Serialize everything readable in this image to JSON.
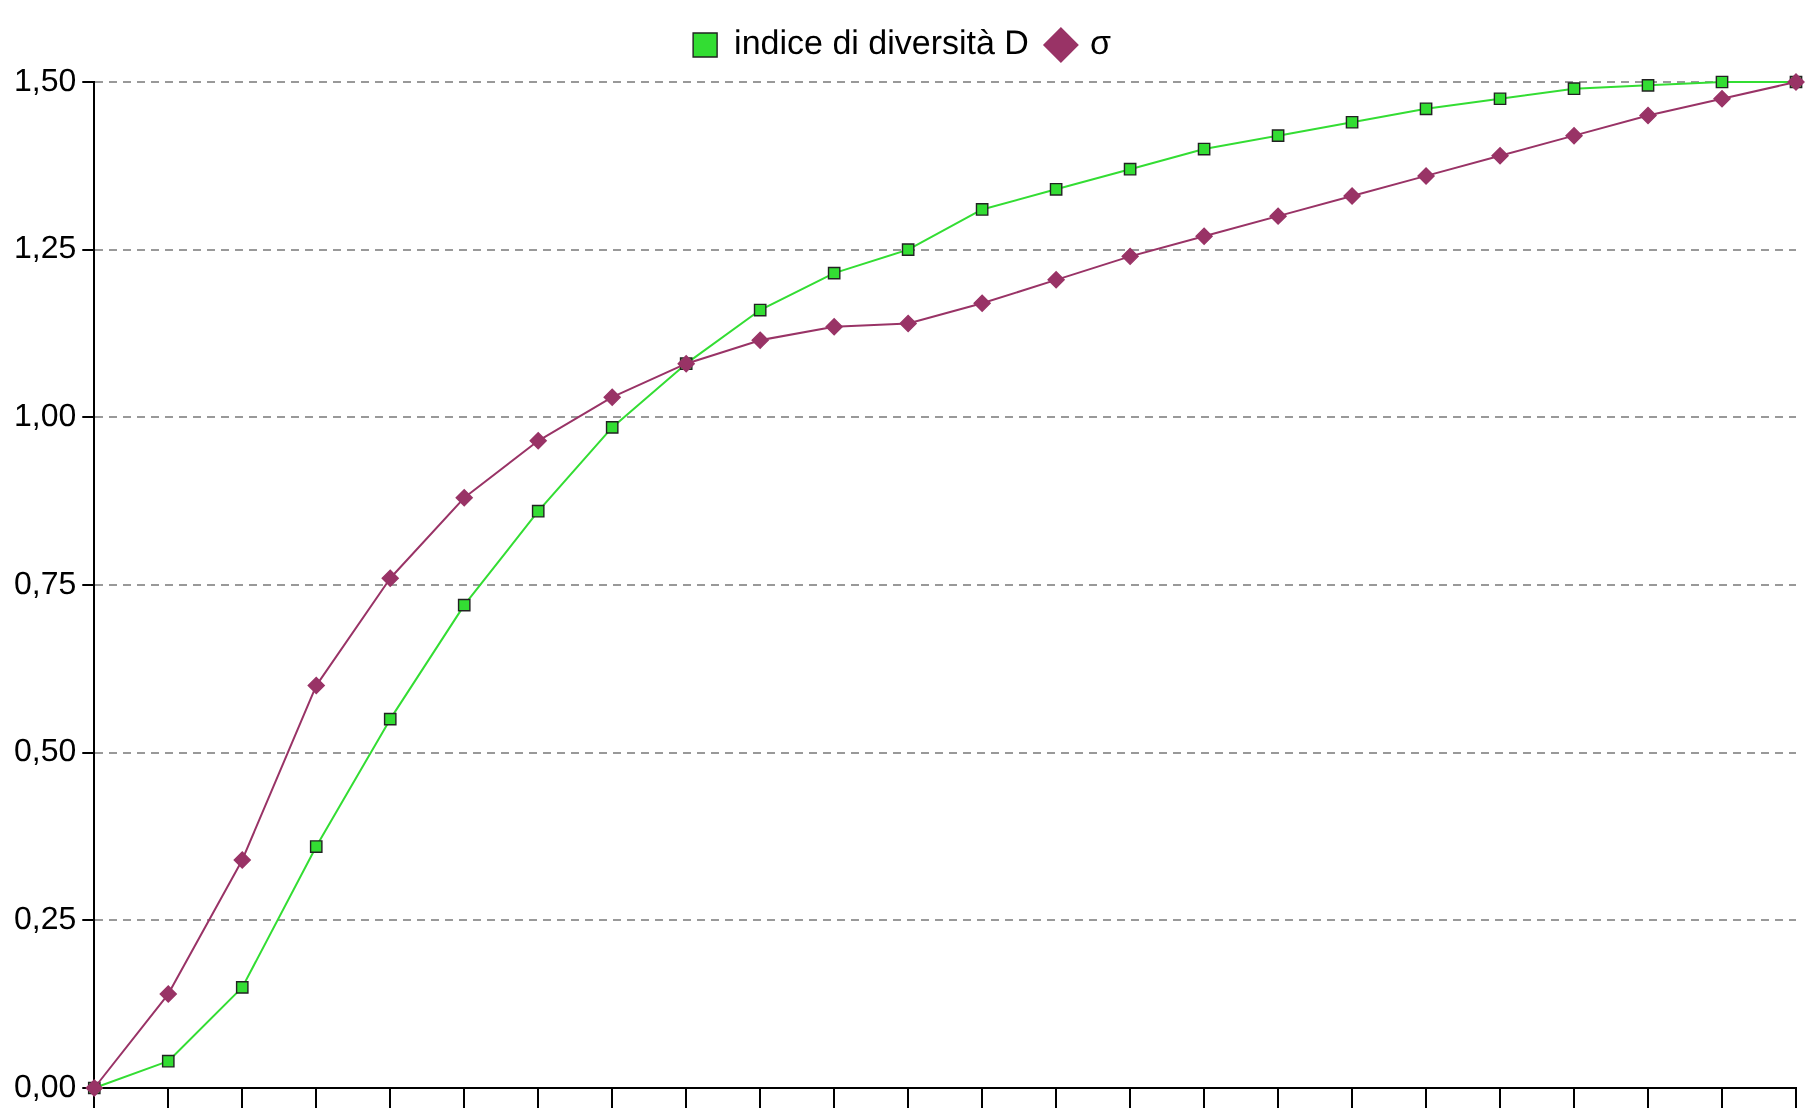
{
  "chart_data": {
    "type": "line",
    "categories": [
      null,
      null,
      null,
      null,
      null,
      null,
      null,
      null,
      null,
      null,
      null,
      null,
      null,
      null,
      null,
      null,
      null,
      null,
      null,
      null,
      null,
      null,
      null,
      null
    ],
    "series": [
      {
        "name": "indice di diversità D",
        "color": "#33dd33",
        "marker": "square",
        "values": [
          0,
          0.04,
          0.15,
          0.36,
          0.55,
          0.72,
          0.86,
          0.985,
          1.08,
          1.16,
          1.215,
          1.25,
          1.31,
          1.34,
          1.37,
          1.4,
          1.42,
          1.44,
          1.46,
          1.475,
          1.49,
          1.495,
          1.5,
          1.5
        ]
      },
      {
        "name": "σ",
        "color": "#993366",
        "marker": "diamond",
        "values": [
          0,
          0.14,
          0.34,
          0.6,
          0.76,
          0.88,
          0.965,
          1.03,
          1.08,
          1.115,
          1.135,
          1.14,
          1.17,
          1.205,
          1.24,
          1.27,
          1.3,
          1.33,
          1.36,
          1.39,
          1.42,
          1.45,
          1.475,
          1.5
        ]
      }
    ],
    "ylim": [
      0,
      1.5
    ],
    "yticks": [
      {
        "value": 0,
        "label": "0,00"
      },
      {
        "value": 0.25,
        "label": "0,25"
      },
      {
        "value": 0.5,
        "label": "0,50"
      },
      {
        "value": 0.75,
        "label": "0,75"
      },
      {
        "value": 1,
        "label": "1,00"
      },
      {
        "value": 1.25,
        "label": "1,25"
      },
      {
        "value": 1.5,
        "label": "1,50"
      }
    ],
    "grid": "y",
    "legend": "top",
    "line_style": "solid",
    "tick_labels": "y"
  }
}
